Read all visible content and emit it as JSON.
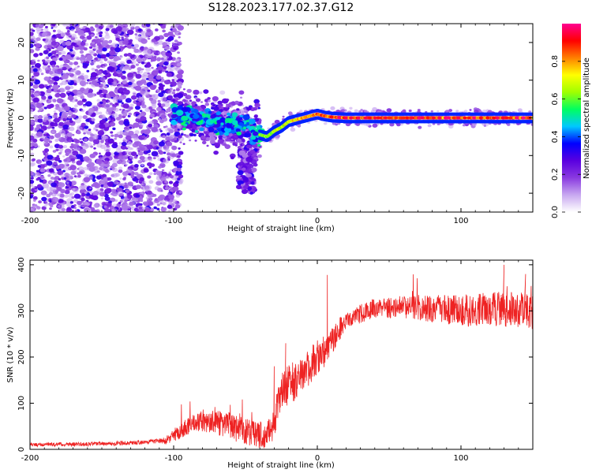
{
  "title": "S128.2023.177.02.37.G12",
  "chart_data": [
    {
      "type": "heatmap",
      "title": "S128.2023.177.02.37.G12",
      "xlabel": "Height of straight line (km)",
      "ylabel": "Frequency (Hz)",
      "xlim": [
        -200,
        150
      ],
      "ylim": [
        -25,
        25
      ],
      "x_ticks": [
        -200,
        -100,
        0,
        100
      ],
      "x_tick_labels": [
        "-200",
        "-100",
        "0",
        "100"
      ],
      "y_ticks": [
        -20,
        -10,
        0,
        10,
        20
      ],
      "y_tick_labels": [
        "-20",
        "-10",
        "0",
        "10",
        "20"
      ],
      "colorbar": {
        "label": "Normalized spectral amplitude",
        "range": [
          0.0,
          1.0
        ],
        "ticks": [
          0.0,
          0.2,
          0.4,
          0.6,
          0.8
        ],
        "tick_labels": [
          "0.0",
          "0.2",
          "0.4",
          "0.6",
          "0.8"
        ],
        "colors": [
          "#ffffff",
          "#c8a8f0",
          "#8a3ae0",
          "#5a00e0",
          "#0000ff",
          "#00c8ff",
          "#00ff60",
          "#a0ff00",
          "#ffff00",
          "#ff8000",
          "#ff0000",
          "#ff0090"
        ]
      },
      "ridge": [
        {
          "x": -100,
          "y": 1.0
        },
        {
          "x": -90,
          "y": 0.5
        },
        {
          "x": -80,
          "y": -0.5
        },
        {
          "x": -70,
          "y": -1.0
        },
        {
          "x": -60,
          "y": -1.5
        },
        {
          "x": -50,
          "y": -2.5
        },
        {
          "x": -45,
          "y": -3.5
        },
        {
          "x": -40,
          "y": -4.5
        },
        {
          "x": -35,
          "y": -5.0
        },
        {
          "x": -30,
          "y": -3.5
        },
        {
          "x": -25,
          "y": -2.5
        },
        {
          "x": -20,
          "y": -1.0
        },
        {
          "x": -15,
          "y": -0.5
        },
        {
          "x": -10,
          "y": 0.0
        },
        {
          "x": -5,
          "y": 0.5
        },
        {
          "x": 0,
          "y": 1.0
        },
        {
          "x": 5,
          "y": 0.5
        },
        {
          "x": 10,
          "y": 0.2
        },
        {
          "x": 20,
          "y": 0.0
        },
        {
          "x": 150,
          "y": 0.0
        }
      ],
      "grid": false
    },
    {
      "type": "line",
      "xlabel": "Height of straight line (km)",
      "ylabel": "SNR (10 * v/v)",
      "xlim": [
        -200,
        150
      ],
      "ylim": [
        0,
        410
      ],
      "x_ticks": [
        -200,
        -100,
        0,
        100
      ],
      "x_tick_labels": [
        "-200",
        "-100",
        "0",
        "100"
      ],
      "y_ticks": [
        0,
        100,
        200,
        300,
        400
      ],
      "y_tick_labels": [
        "0",
        "100",
        "200",
        "300",
        "400"
      ],
      "color": "#ee2222",
      "trend": [
        {
          "x": -200,
          "y": 10
        },
        {
          "x": -150,
          "y": 12
        },
        {
          "x": -120,
          "y": 15
        },
        {
          "x": -105,
          "y": 20
        },
        {
          "x": -95,
          "y": 40
        },
        {
          "x": -85,
          "y": 60
        },
        {
          "x": -75,
          "y": 60
        },
        {
          "x": -65,
          "y": 55
        },
        {
          "x": -55,
          "y": 45
        },
        {
          "x": -45,
          "y": 35
        },
        {
          "x": -35,
          "y": 30
        },
        {
          "x": -30,
          "y": 60
        },
        {
          "x": -25,
          "y": 120
        },
        {
          "x": -20,
          "y": 140
        },
        {
          "x": -15,
          "y": 150
        },
        {
          "x": -10,
          "y": 165
        },
        {
          "x": -5,
          "y": 180
        },
        {
          "x": 0,
          "y": 200
        },
        {
          "x": 5,
          "y": 210
        },
        {
          "x": 10,
          "y": 235
        },
        {
          "x": 15,
          "y": 260
        },
        {
          "x": 20,
          "y": 275
        },
        {
          "x": 25,
          "y": 285
        },
        {
          "x": 30,
          "y": 295
        },
        {
          "x": 40,
          "y": 305
        },
        {
          "x": 60,
          "y": 310
        },
        {
          "x": 80,
          "y": 305
        },
        {
          "x": 100,
          "y": 300
        },
        {
          "x": 120,
          "y": 305
        },
        {
          "x": 150,
          "y": 300
        }
      ],
      "noise": [
        {
          "x": -200,
          "y": 4
        },
        {
          "x": -110,
          "y": 5
        },
        {
          "x": -100,
          "y": 15
        },
        {
          "x": -60,
          "y": 30
        },
        {
          "x": -35,
          "y": 30
        },
        {
          "x": -25,
          "y": 45
        },
        {
          "x": 0,
          "y": 40
        },
        {
          "x": 20,
          "y": 20
        },
        {
          "x": 60,
          "y": 25
        },
        {
          "x": 100,
          "y": 35
        },
        {
          "x": 150,
          "y": 40
        }
      ],
      "spikes": [
        {
          "x": 7,
          "y": 378
        },
        {
          "x": -30,
          "y": 180
        },
        {
          "x": -22,
          "y": 230
        },
        {
          "x": 130,
          "y": 400
        },
        {
          "x": 145,
          "y": 380
        }
      ],
      "grid": false
    }
  ]
}
